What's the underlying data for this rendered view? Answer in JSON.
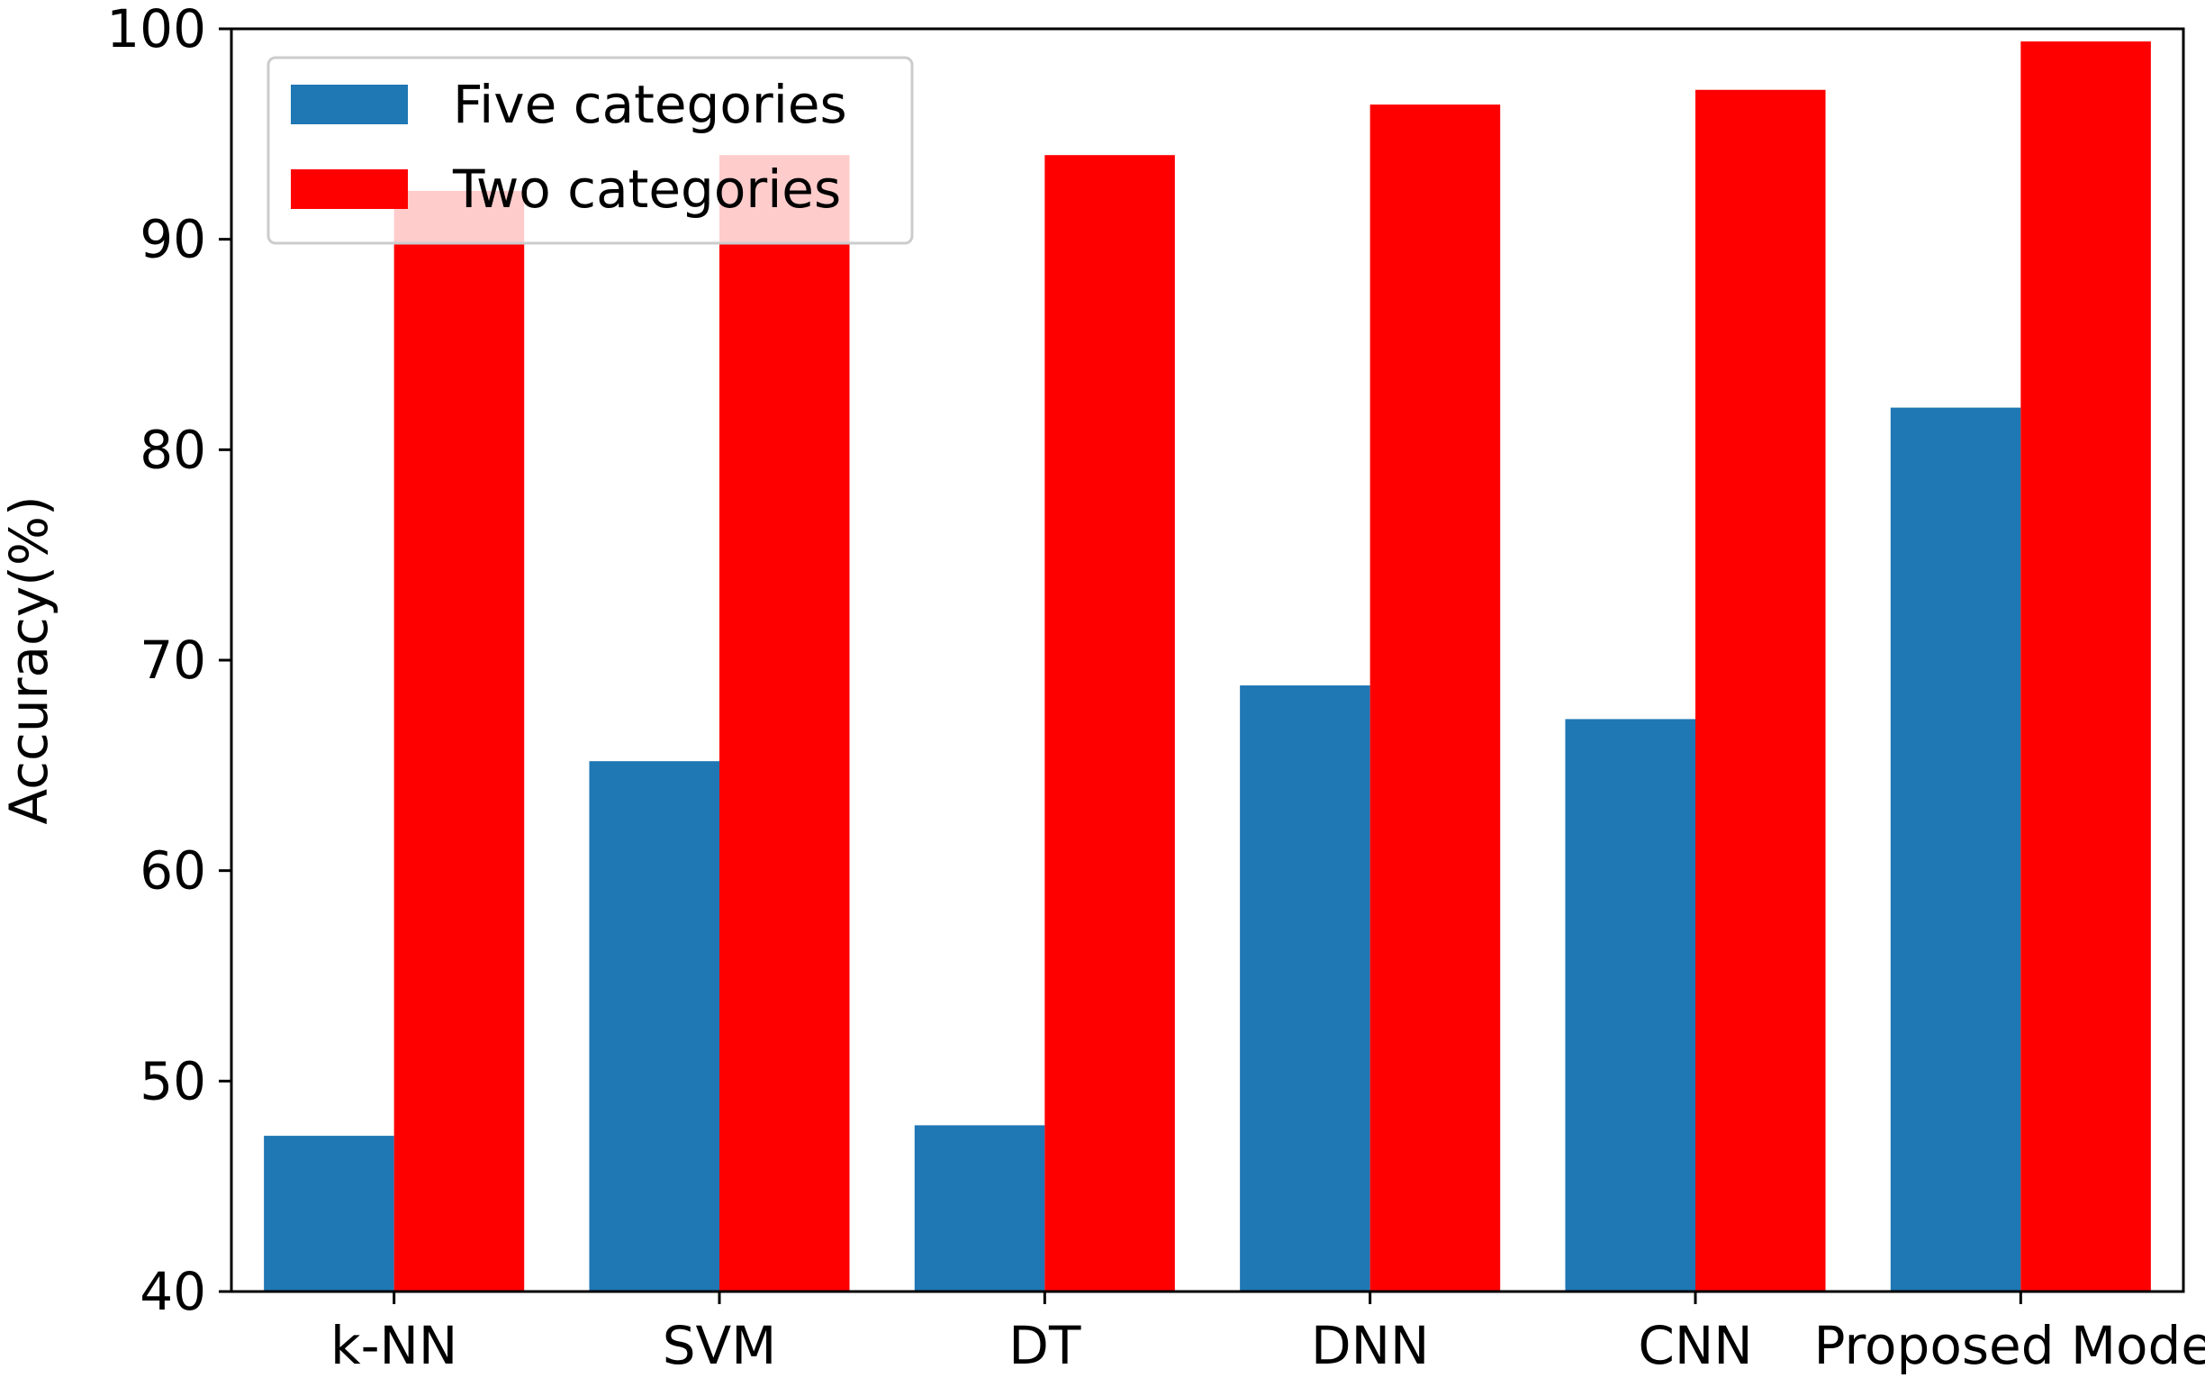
{
  "chart_data": {
    "type": "bar",
    "title": "",
    "xlabel": "",
    "ylabel": "Accuracy(%)",
    "categories": [
      "k-NN",
      "SVM",
      "DT",
      "DNN",
      "CNN",
      "Proposed Model"
    ],
    "series": [
      {
        "name": "Five categories",
        "values": [
          47.4,
          65.2,
          47.9,
          68.8,
          67.2,
          82.0
        ],
        "color": "#1f77b4"
      },
      {
        "name": "Two categories",
        "values": [
          92.3,
          94.0,
          94.0,
          96.4,
          97.1,
          99.4
        ],
        "color": "#ff0000"
      }
    ],
    "ylim": [
      40,
      100
    ],
    "yticks": [
      "40",
      "50",
      "60",
      "70",
      "80",
      "90",
      "100"
    ],
    "grid": false,
    "legend": {
      "position": "top-left",
      "entries": [
        "Five categories",
        "Two categories"
      ]
    }
  }
}
